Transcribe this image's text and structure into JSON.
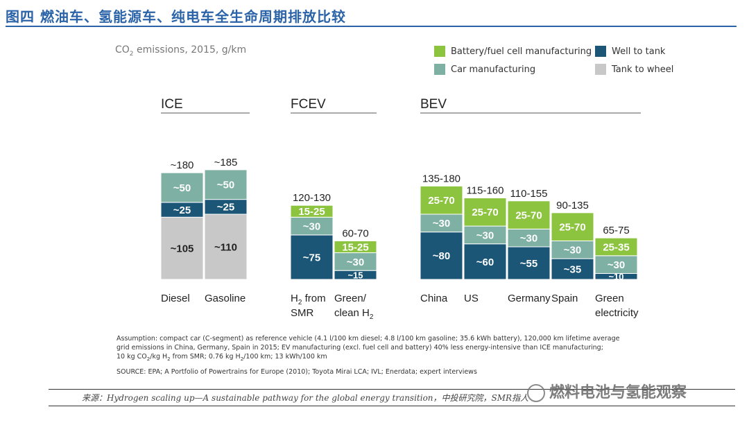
{
  "figure_title": "图四 燃油车、氢能源车、纯电车全生命周期排放比较",
  "subtitle": {
    "prefix": "CO",
    "sub": "2",
    "suffix": " emissions, 2015, g/km"
  },
  "colors": {
    "battery": "#8cc43f",
    "car": "#7fb0a4",
    "well": "#1c5677",
    "tank": "#c8c8c8"
  },
  "legend": [
    {
      "key": "battery",
      "label": "Battery/fuel cell manufacturing"
    },
    {
      "key": "car",
      "label": "Car manufacturing"
    },
    {
      "key": "well",
      "label": "Well to tank"
    },
    {
      "key": "tank",
      "label": "Tank to wheel"
    }
  ],
  "chart_data": {
    "type": "bar",
    "stacked": true,
    "unit": "g/km",
    "groups": [
      {
        "name": "ICE",
        "bars": [
          {
            "label": "Diesel",
            "total_label": "~180",
            "segments": [
              {
                "key": "tank",
                "value": 105,
                "label": "~105"
              },
              {
                "key": "well",
                "value": 25,
                "label": "~25"
              },
              {
                "key": "car",
                "value": 50,
                "label": "~50"
              }
            ]
          },
          {
            "label": "Gasoline",
            "total_label": "~185",
            "segments": [
              {
                "key": "tank",
                "value": 110,
                "label": "~110"
              },
              {
                "key": "well",
                "value": 25,
                "label": "~25"
              },
              {
                "key": "car",
                "value": 50,
                "label": "~50"
              }
            ]
          }
        ]
      },
      {
        "name": "FCEV",
        "bars": [
          {
            "label": "H2 from SMR",
            "label_lines": [
              [
                "H",
                "2",
                " from"
              ],
              [
                "SMR"
              ]
            ],
            "total_label": "120-130",
            "segments": [
              {
                "key": "well",
                "value": 75,
                "label": "~75"
              },
              {
                "key": "car",
                "value": 30,
                "label": "~30"
              },
              {
                "key": "battery",
                "value": 20,
                "label": "15-25"
              }
            ]
          },
          {
            "label": "Green/ clean H2",
            "label_lines": [
              [
                "Green/"
              ],
              [
                "clean H",
                "2",
                ""
              ]
            ],
            "total_label": "60-70",
            "segments": [
              {
                "key": "well",
                "value": 15,
                "label": "~15"
              },
              {
                "key": "car",
                "value": 30,
                "label": "~30"
              },
              {
                "key": "battery",
                "value": 20,
                "label": "15-25"
              }
            ]
          }
        ]
      },
      {
        "name": "BEV",
        "bars": [
          {
            "label": "China",
            "total_label": "135-180",
            "segments": [
              {
                "key": "well",
                "value": 80,
                "label": "~80"
              },
              {
                "key": "car",
                "value": 30,
                "label": "~30"
              },
              {
                "key": "battery",
                "value": 47.5,
                "label": "25-70"
              }
            ]
          },
          {
            "label": "US",
            "total_label": "115-160",
            "segments": [
              {
                "key": "well",
                "value": 60,
                "label": "~60"
              },
              {
                "key": "car",
                "value": 30,
                "label": "~30"
              },
              {
                "key": "battery",
                "value": 47.5,
                "label": "25-70"
              }
            ]
          },
          {
            "label": "Germany",
            "total_label": "110-155",
            "segments": [
              {
                "key": "well",
                "value": 55,
                "label": "~55"
              },
              {
                "key": "car",
                "value": 30,
                "label": "~30"
              },
              {
                "key": "battery",
                "value": 47.5,
                "label": "25-70"
              }
            ]
          },
          {
            "label": "Spain",
            "total_label": "90-135",
            "segments": [
              {
                "key": "well",
                "value": 35,
                "label": "~35"
              },
              {
                "key": "car",
                "value": 30,
                "label": "~30"
              },
              {
                "key": "battery",
                "value": 47.5,
                "label": "25-70"
              }
            ]
          },
          {
            "label": "Green electricity",
            "label_lines": [
              [
                "Green"
              ],
              [
                "electricity"
              ]
            ],
            "total_label": "65-75",
            "segments": [
              {
                "key": "well",
                "value": 10,
                "label": "~10"
              },
              {
                "key": "car",
                "value": 30,
                "label": "~30"
              },
              {
                "key": "battery",
                "value": 30,
                "label": "25-35"
              }
            ]
          }
        ]
      }
    ]
  },
  "notes": {
    "assumption_1": "Assumption: compact car (C-segment) as reference vehicle (4.1 l/100 km diesel; 4.8 l/100 km gasoline; 35.6 kWh battery), 120,000 km lifetime average",
    "assumption_2": "grid emissions in China, Germany, Spain in 2015; EV manufacturing (excl. fuel cell and battery) 40% less energy-intensive than ICE manufacturing;",
    "assumption_3a": "10 kg CO",
    "assumption_3b": "2",
    "assumption_3c": "/kg H",
    "assumption_3d": "2",
    "assumption_3e": " from SMR; 0.76 kg H",
    "assumption_3f": "2",
    "assumption_3g": "/100 km; 13 kWh/100 km",
    "source": "SOURCE: EPA; A Portfolio of Powertrains for Europe (2010); Toyota Mirai LCA; IVL; Enerdata; expert interviews"
  },
  "citation": "来源：Hydrogen scaling up—A sustainable pathway for the global energy transition，中投研究院，SMR指人",
  "watermark": "燃料电池与氢能观察"
}
